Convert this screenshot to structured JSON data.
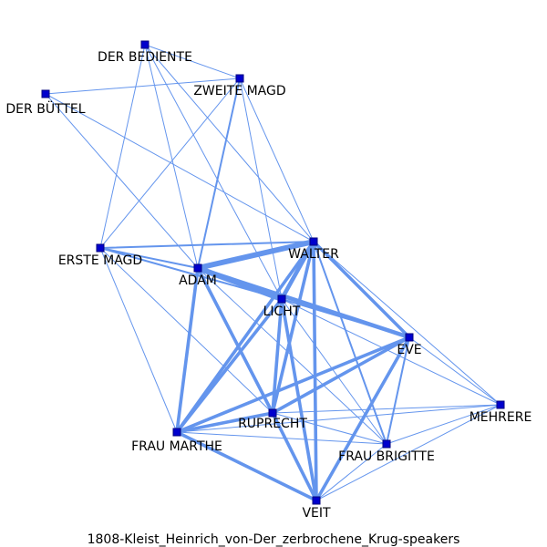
{
  "caption": "1808-Kleist_Heinrich_von-Der_zerbrochene_Krug-speakers",
  "colors": {
    "edge": "#6495ED",
    "node_fill": "#0000CD",
    "node_stroke": "#000080",
    "label": "#000000"
  },
  "nodes": [
    {
      "id": "der-bediente",
      "label": "DER BEDIENTE"
    },
    {
      "id": "zweite-magd",
      "label": "ZWEITE MAGD"
    },
    {
      "id": "der-buttel",
      "label": "DER BÜTTEL"
    },
    {
      "id": "erste-magd",
      "label": "ERSTE MAGD"
    },
    {
      "id": "walter",
      "label": "WALTER"
    },
    {
      "id": "adam",
      "label": "ADAM"
    },
    {
      "id": "licht",
      "label": "LICHT"
    },
    {
      "id": "eve",
      "label": "EVE"
    },
    {
      "id": "mehrere",
      "label": "MEHRERE"
    },
    {
      "id": "ruprecht",
      "label": "RUPRECHT"
    },
    {
      "id": "frau-marthe",
      "label": "FRAU MARTHE"
    },
    {
      "id": "frau-brigitte",
      "label": "FRAU BRIGITTE"
    },
    {
      "id": "veit",
      "label": "VEIT"
    }
  ],
  "edges": [
    {
      "source": "der-bediente",
      "target": "zweite-magd",
      "weight": 1
    },
    {
      "source": "der-bediente",
      "target": "erste-magd",
      "weight": 1
    },
    {
      "source": "der-bediente",
      "target": "adam",
      "weight": 1
    },
    {
      "source": "der-bediente",
      "target": "licht",
      "weight": 1
    },
    {
      "source": "der-bediente",
      "target": "walter",
      "weight": 1
    },
    {
      "source": "zweite-magd",
      "target": "der-buttel",
      "weight": 1
    },
    {
      "source": "zweite-magd",
      "target": "erste-magd",
      "weight": 1
    },
    {
      "source": "zweite-magd",
      "target": "adam",
      "weight": 2
    },
    {
      "source": "zweite-magd",
      "target": "walter",
      "weight": 1
    },
    {
      "source": "zweite-magd",
      "target": "licht",
      "weight": 1
    },
    {
      "source": "der-buttel",
      "target": "adam",
      "weight": 1
    },
    {
      "source": "der-buttel",
      "target": "walter",
      "weight": 1
    },
    {
      "source": "erste-magd",
      "target": "walter",
      "weight": 2
    },
    {
      "source": "erste-magd",
      "target": "adam",
      "weight": 2
    },
    {
      "source": "erste-magd",
      "target": "licht",
      "weight": 2
    },
    {
      "source": "erste-magd",
      "target": "frau-marthe",
      "weight": 1
    },
    {
      "source": "erste-magd",
      "target": "ruprecht",
      "weight": 1
    },
    {
      "source": "walter",
      "target": "adam",
      "weight": 5
    },
    {
      "source": "walter",
      "target": "licht",
      "weight": 4
    },
    {
      "source": "walter",
      "target": "eve",
      "weight": 3
    },
    {
      "source": "walter",
      "target": "ruprecht",
      "weight": 3
    },
    {
      "source": "walter",
      "target": "frau-marthe",
      "weight": 3
    },
    {
      "source": "walter",
      "target": "veit",
      "weight": 3
    },
    {
      "source": "walter",
      "target": "frau-brigitte",
      "weight": 2
    },
    {
      "source": "walter",
      "target": "mehrere",
      "weight": 1
    },
    {
      "source": "adam",
      "target": "licht",
      "weight": 5
    },
    {
      "source": "adam",
      "target": "eve",
      "weight": 4
    },
    {
      "source": "adam",
      "target": "ruprecht",
      "weight": 3
    },
    {
      "source": "adam",
      "target": "frau-marthe",
      "weight": 3
    },
    {
      "source": "adam",
      "target": "veit",
      "weight": 2
    },
    {
      "source": "adam",
      "target": "frau-brigitte",
      "weight": 1
    },
    {
      "source": "licht",
      "target": "eve",
      "weight": 2
    },
    {
      "source": "licht",
      "target": "ruprecht",
      "weight": 3
    },
    {
      "source": "licht",
      "target": "frau-marthe",
      "weight": 3
    },
    {
      "source": "licht",
      "target": "veit",
      "weight": 3
    },
    {
      "source": "licht",
      "target": "frau-brigitte",
      "weight": 1
    },
    {
      "source": "licht",
      "target": "mehrere",
      "weight": 1
    },
    {
      "source": "eve",
      "target": "ruprecht",
      "weight": 3
    },
    {
      "source": "eve",
      "target": "frau-marthe",
      "weight": 3
    },
    {
      "source": "eve",
      "target": "veit",
      "weight": 3
    },
    {
      "source": "eve",
      "target": "frau-brigitte",
      "weight": 2
    },
    {
      "source": "eve",
      "target": "mehrere",
      "weight": 1
    },
    {
      "source": "ruprecht",
      "target": "frau-marthe",
      "weight": 3
    },
    {
      "source": "ruprecht",
      "target": "veit",
      "weight": 3
    },
    {
      "source": "ruprecht",
      "target": "frau-brigitte",
      "weight": 1
    },
    {
      "source": "ruprecht",
      "target": "mehrere",
      "weight": 1
    },
    {
      "source": "frau-marthe",
      "target": "veit",
      "weight": 3
    },
    {
      "source": "frau-marthe",
      "target": "frau-brigitte",
      "weight": 1
    },
    {
      "source": "frau-marthe",
      "target": "mehrere",
      "weight": 1
    },
    {
      "source": "frau-brigitte",
      "target": "veit",
      "weight": 1
    },
    {
      "source": "frau-brigitte",
      "target": "mehrere",
      "weight": 1
    },
    {
      "source": "veit",
      "target": "mehrere",
      "weight": 1
    }
  ]
}
